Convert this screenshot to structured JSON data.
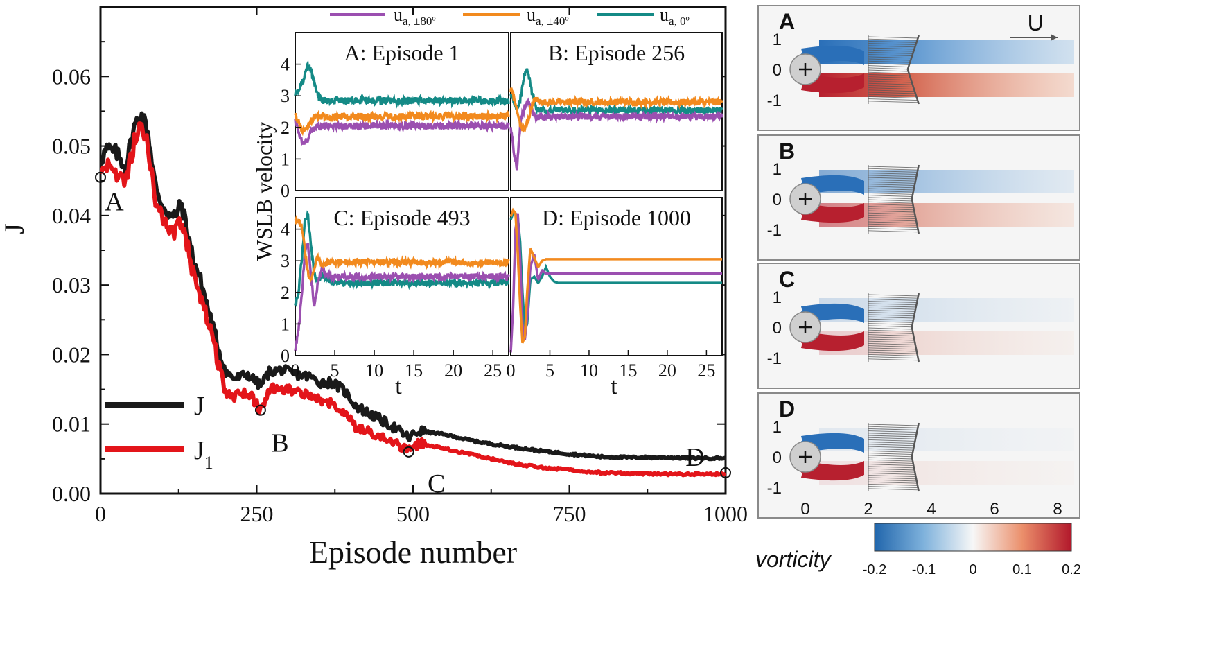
{
  "chart_data": [
    {
      "type": "line",
      "xlabel": "Episode number",
      "ylabel": "J",
      "xlim": [
        0,
        1000
      ],
      "ylim": [
        0,
        0.07
      ],
      "x_ticks": [
        "0",
        "250",
        "500",
        "750",
        "1000"
      ],
      "y_ticks": [
        "0.00",
        "0.01",
        "0.02",
        "0.03",
        "0.04",
        "0.05",
        "0.06"
      ],
      "legend": {
        "placement": "lower-left",
        "entries": [
          [
            "J",
            ""
          ],
          [
            "J",
            "1"
          ]
        ]
      },
      "markers": [
        {
          "label": "A",
          "x": 0,
          "y": 0.0455
        },
        {
          "label": "B",
          "x": 256,
          "y": 0.012
        },
        {
          "label": "C",
          "x": 493,
          "y": 0.006
        },
        {
          "label": "D",
          "x": 1000,
          "y": 0.003
        }
      ],
      "series": [
        {
          "name": "J",
          "color": "#1a1a1a",
          "x": [
            0,
            10,
            25,
            40,
            55,
            65,
            75,
            90,
            100,
            115,
            130,
            145,
            165,
            185,
            200,
            215,
            235,
            256,
            270,
            290,
            310,
            335,
            350,
            370,
            390,
            410,
            440,
            470,
            493,
            510,
            550,
            600,
            650,
            700,
            750,
            800,
            850,
            900,
            950,
            1000
          ],
          "values": [
            0.048,
            0.0495,
            0.049,
            0.047,
            0.053,
            0.0545,
            0.0525,
            0.043,
            0.0415,
            0.0395,
            0.0415,
            0.035,
            0.029,
            0.022,
            0.0175,
            0.0165,
            0.0172,
            0.0155,
            0.0175,
            0.0178,
            0.0172,
            0.0168,
            0.016,
            0.016,
            0.0148,
            0.0125,
            0.011,
            0.0095,
            0.008,
            0.009,
            0.0085,
            0.0075,
            0.0068,
            0.0062,
            0.0057,
            0.0053,
            0.0052,
            0.0052,
            0.0051,
            0.0051
          ]
        },
        {
          "name": "J1",
          "color": "#e3151a",
          "x": [
            0,
            10,
            25,
            40,
            55,
            65,
            75,
            90,
            100,
            115,
            130,
            145,
            165,
            185,
            200,
            215,
            235,
            256,
            270,
            290,
            310,
            335,
            350,
            370,
            390,
            410,
            440,
            470,
            493,
            510,
            550,
            600,
            650,
            700,
            750,
            800,
            850,
            900,
            950,
            1000
          ],
          "values": [
            0.0455,
            0.047,
            0.046,
            0.0445,
            0.051,
            0.0525,
            0.0505,
            0.041,
            0.0395,
            0.0375,
            0.0395,
            0.033,
            0.027,
            0.02,
            0.0145,
            0.014,
            0.0148,
            0.012,
            0.015,
            0.0152,
            0.0148,
            0.0142,
            0.0135,
            0.013,
            0.0115,
            0.0095,
            0.0085,
            0.0072,
            0.006,
            0.0072,
            0.0065,
            0.0055,
            0.0045,
            0.0038,
            0.0034,
            0.003,
            0.0029,
            0.0028,
            0.0028,
            0.0028
          ]
        }
      ]
    },
    {
      "type": "line",
      "ylabel": "WSLB velocity",
      "xlabel": "t",
      "xlim": [
        0,
        27
      ],
      "ylim": [
        0,
        5
      ],
      "x_ticks": [
        "0",
        "5",
        "10",
        "15",
        "20",
        "25"
      ],
      "y_ticks": [
        "0",
        "1",
        "2",
        "3",
        "4"
      ],
      "legend_entries": [
        {
          "base": "u",
          "sub": "a, ±80º",
          "color": "#9b4fb0"
        },
        {
          "base": "u",
          "sub": "a, ±40º",
          "color": "#f28a1e"
        },
        {
          "base": "u",
          "sub": "a, 0º",
          "color": "#148a86"
        }
      ],
      "panels": [
        {
          "title": "A: Episode 1",
          "steady": {
            "u80": 2.05,
            "u40": 2.35,
            "u0": 2.85
          },
          "noise": 0.11,
          "t": [
            0,
            0.5,
            1,
            1.5,
            2,
            2.5,
            3,
            3.5,
            4,
            5
          ],
          "u80": [
            2.2,
            1.8,
            1.45,
            1.6,
            1.85,
            2.0,
            2.05,
            2.05,
            2.05,
            2.05
          ],
          "u40": [
            2.4,
            2.1,
            1.9,
            2.0,
            2.2,
            2.35,
            2.35,
            2.35,
            2.35,
            2.35
          ],
          "u0": [
            3.1,
            3.2,
            3.5,
            3.95,
            3.8,
            3.3,
            2.95,
            2.85,
            2.85,
            2.85
          ]
        },
        {
          "title": "B: Episode 256",
          "steady": {
            "u80": 2.35,
            "u40": 2.8,
            "u0": 2.55
          },
          "noise": 0.1,
          "t": [
            0,
            0.4,
            0.8,
            1.2,
            1.7,
            2.2,
            2.7,
            3.2,
            3.8,
            4.5
          ],
          "u80": [
            2.0,
            1.2,
            0.7,
            2.1,
            2.6,
            2.9,
            2.5,
            2.3,
            2.35,
            2.35
          ],
          "u40": [
            3.2,
            3.0,
            2.5,
            2.1,
            1.9,
            2.2,
            2.7,
            2.9,
            2.8,
            2.8
          ],
          "u0": [
            3.0,
            2.8,
            2.6,
            2.9,
            3.6,
            3.8,
            3.1,
            2.6,
            2.55,
            2.55
          ]
        },
        {
          "title": "C: Episode 493",
          "steady": {
            "u80": 2.5,
            "u40": 2.95,
            "u0": 2.3
          },
          "noise": 0.1,
          "t": [
            0,
            0.4,
            0.8,
            1.2,
            1.6,
            2.0,
            2.4,
            2.8,
            3.4,
            4.0,
            4.6,
            5.5
          ],
          "u80": [
            0.2,
            0.8,
            1.8,
            3.2,
            3.6,
            2.5,
            1.6,
            2.2,
            2.8,
            2.55,
            2.5,
            2.5
          ],
          "u40": [
            4.2,
            4.3,
            4.1,
            3.4,
            2.6,
            2.4,
            2.8,
            3.1,
            2.9,
            2.95,
            2.95,
            2.95
          ],
          "u0": [
            1.6,
            2.0,
            3.0,
            4.2,
            4.5,
            3.4,
            2.6,
            2.3,
            2.6,
            2.4,
            2.3,
            2.3
          ]
        },
        {
          "title": "D: Episode 1000",
          "steady": {
            "u80": 2.6,
            "u40": 3.05,
            "u0": 2.3
          },
          "noise": 0.0,
          "t": [
            0,
            0.3,
            0.6,
            0.9,
            1.2,
            1.5,
            1.8,
            2.1,
            2.5,
            3.0,
            3.5,
            4.0,
            4.5,
            5.0,
            5.5,
            6.0,
            7.0
          ],
          "u80": [
            0.1,
            1.5,
            4.0,
            4.5,
            3.0,
            1.0,
            0.5,
            1.2,
            2.8,
            3.2,
            2.4,
            2.7,
            2.6,
            2.6,
            2.6,
            2.6,
            2.6
          ],
          "u40": [
            4.4,
            4.6,
            4.5,
            3.2,
            1.6,
            0.4,
            0.6,
            2.0,
            3.4,
            3.1,
            2.8,
            3.0,
            3.05,
            3.05,
            3.05,
            3.05,
            3.05
          ],
          "u0": [
            4.3,
            4.5,
            4.5,
            4.4,
            3.6,
            2.0,
            0.8,
            1.0,
            2.4,
            2.5,
            2.3,
            2.5,
            2.8,
            2.5,
            2.35,
            2.3,
            2.3
          ]
        }
      ]
    },
    {
      "type": "heatmap",
      "panels": [
        "A",
        "B",
        "C",
        "D"
      ],
      "x_ticks": [
        "0",
        "2",
        "4",
        "6",
        "8"
      ],
      "y_ticks": [
        "1",
        "0",
        "-1"
      ],
      "flow_label": "U",
      "colorbar": {
        "label": "vorticity",
        "ticks": [
          "-0.2",
          "-0.1",
          "0",
          "0.1",
          "0.2"
        ],
        "range": [
          -0.2,
          0.2
        ],
        "colors": [
          "#2166ac",
          "#f7f7f7",
          "#b2182b"
        ]
      },
      "wake_strength": [
        1.0,
        0.55,
        0.2,
        0.1
      ]
    }
  ]
}
